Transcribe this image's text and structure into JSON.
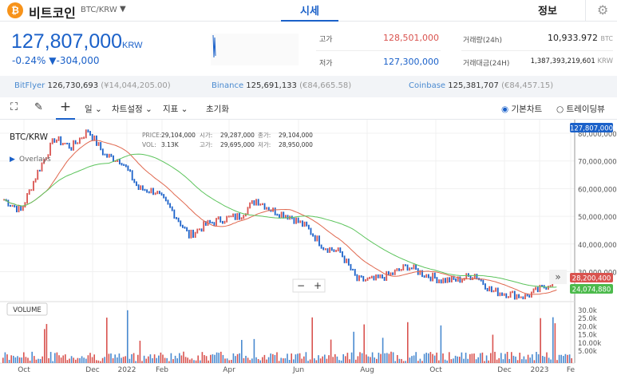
{
  "header": {
    "coin_icon": "bitcoin-icon",
    "title": "비트코인",
    "pair": "BTC/KRW",
    "tabs": [
      {
        "label": "시세",
        "active": true
      },
      {
        "label": "정보",
        "active": false
      }
    ],
    "accent": "#1b61c9"
  },
  "price": {
    "value": "127,807,000",
    "unit": "KRW",
    "change_pct": "-0.24%",
    "change_abs": "▼-304,000"
  },
  "stats": {
    "high_label": "고가",
    "high": "128,501,000",
    "low_label": "저가",
    "low": "127,300,000",
    "vol_label": "거래량(24h)",
    "vol": "10,933.972",
    "vol_unit": "BTC",
    "amt_label": "거래대금(24H)",
    "amt": "1,387,393,219,601",
    "amt_unit": "KRW"
  },
  "exchanges": [
    {
      "name": "BitFlyer",
      "price": "126,730,693",
      "sub": "(¥14,044,205.00)"
    },
    {
      "name": "Binance",
      "price": "125,691,133",
      "sub": "(€84,665.58)"
    },
    {
      "name": "Coinbase",
      "price": "125,381,707",
      "sub": "(€84,457.15)"
    }
  ],
  "toolbar": {
    "period": "일",
    "settings": "차트설정",
    "indicators": "지표",
    "reset": "초기화",
    "basic_chart": "기본차트",
    "tradingview": "트레이딩뷰",
    "basic_selected": true
  },
  "chart": {
    "symbol": "BTC/KRW",
    "overlays": "Overlays",
    "info": {
      "price_label": "PRICE:",
      "price": "29,104,000",
      "open_label": "시가:",
      "open": "29,287,000",
      "close_label": "종가:",
      "close": "29,104,000",
      "vol_label": "VOL:",
      "vol": "3.13K",
      "high_label": "고가:",
      "high": "29,695,000",
      "low_label": "저가:",
      "low": "28,950,000"
    },
    "current_price_tag": "127,807,000",
    "ma_short_tag": "28,200,400",
    "ma_long_tag": "24,074,880",
    "volume_label": "VOLUME",
    "y_ticks": [
      "80,000,000",
      "70,000,000",
      "60,000,000",
      "50,000,000",
      "40,000,000",
      "30,000,000"
    ],
    "vol_ticks": [
      "30.0k",
      "25.0k",
      "20.0k",
      "15.0k",
      "10.00k",
      "5.00k"
    ],
    "x_ticks": [
      "Oct",
      "Dec",
      "2022",
      "Feb",
      "Apr",
      "Jun",
      "Aug",
      "Oct",
      "Dec",
      "2023",
      "Fe"
    ],
    "colors": {
      "up": "#d9534f",
      "down": "#1b61c9",
      "ma_short": "#e0684f",
      "ma_long": "#5cc45c"
    }
  },
  "chart_data": {
    "type": "line",
    "ylabel": "",
    "ylim": [
      22000000,
      83000000
    ],
    "close_millions": [
      56,
      52,
      66,
      78,
      75,
      81,
      72,
      70,
      60,
      59,
      52,
      43,
      47,
      49,
      50,
      56,
      52,
      50,
      46,
      39,
      37,
      27,
      27,
      29,
      32,
      29,
      27,
      27,
      29,
      23,
      22,
      21,
      24,
      28
    ]
  }
}
